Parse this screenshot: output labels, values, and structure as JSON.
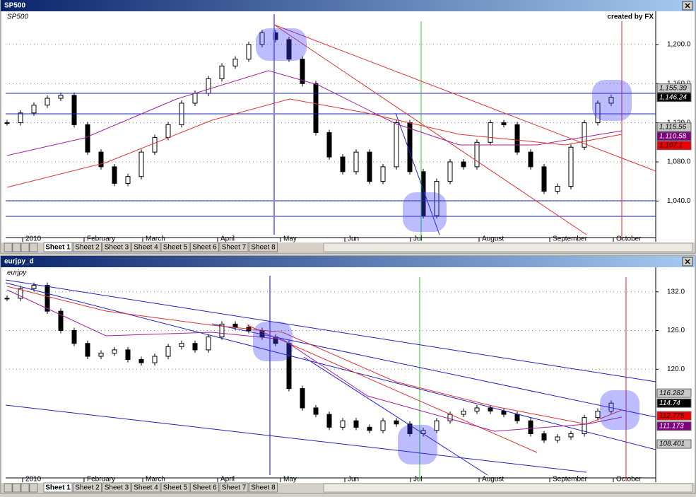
{
  "windows": [
    {
      "title": "SP500",
      "label": "SP500",
      "credit": "created by FX",
      "ylim": [
        1007,
        1231
      ],
      "yticks": [
        {
          "value": 1200,
          "label": "1,200.0"
        },
        {
          "value": 1160,
          "label": "1,160.0"
        },
        {
          "value": 1120,
          "label": "1,120.0"
        },
        {
          "value": 1080,
          "label": "1,080.0"
        },
        {
          "value": 1040,
          "label": "1,040.0"
        }
      ],
      "price_tags": [
        {
          "value": 1155.39,
          "label": "1,155.39",
          "color": "#c8c8c8"
        },
        {
          "value": 1146.24,
          "label": "1,146.24",
          "color": "#000000"
        },
        {
          "value": 1115.56,
          "label": "1,115.56",
          "color": "#c8c8c8"
        },
        {
          "value": 1110.58,
          "label": "1,110.58",
          "color": "#800080"
        },
        {
          "value": 1107.1,
          "label": "1,107.1",
          "color": "#ee0000"
        }
      ],
      "months": [
        "2010",
        "February",
        "March",
        "April",
        "May",
        "Jun",
        "Jul",
        "August",
        "September",
        "October"
      ],
      "closes": [
        1120,
        1130,
        1138,
        1145,
        1148,
        1118,
        1090,
        1075,
        1058,
        1065,
        1090,
        1105,
        1118,
        1140,
        1150,
        1165,
        1178,
        1185,
        1200,
        1212,
        1205,
        1185,
        1160,
        1110,
        1085,
        1070,
        1090,
        1060,
        1075,
        1120,
        1070,
        1025,
        1060,
        1080,
        1075,
        1100,
        1120,
        1118,
        1090,
        1075,
        1050,
        1055,
        1095,
        1120,
        1140,
        1146
      ]
    },
    {
      "title": "eurjpy_d",
      "label": "eurjpy",
      "ylim": [
        103.8,
        134.5
      ],
      "yticks": [
        {
          "value": 132,
          "label": "132.0"
        },
        {
          "value": 126,
          "label": "126.0"
        },
        {
          "value": 120,
          "label": "120.0"
        }
      ],
      "price_tags": [
        {
          "value": 116.282,
          "label": "116.282",
          "color": "#c8c8c8"
        },
        {
          "value": 114.74,
          "label": "114.74",
          "color": "#000000"
        },
        {
          "value": 112.775,
          "label": "112.775",
          "color": "#ee0000"
        },
        {
          "value": 111.173,
          "label": "111.173",
          "color": "#800080"
        },
        {
          "value": 108.401,
          "label": "108.401",
          "color": "#c8c8c8"
        }
      ],
      "months": [
        "2010",
        "February",
        "March",
        "April",
        "May",
        "Jun",
        "Jul",
        "August",
        "September",
        "October"
      ],
      "closes": [
        131,
        132.5,
        133,
        129,
        126,
        124,
        122,
        122.5,
        123,
        121.5,
        121,
        122,
        123.5,
        124,
        123,
        125,
        127,
        126.5,
        126,
        125,
        124,
        117,
        114,
        113,
        111,
        112,
        111,
        110.5,
        112,
        111.5,
        110,
        110.5,
        112,
        113,
        113.5,
        114,
        113.5,
        113,
        112,
        110,
        109,
        109.5,
        110,
        112.5,
        113.5,
        114.74
      ]
    }
  ],
  "sheets": [
    "Sheet 1",
    "Sheet 2",
    "Sheet 3",
    "Sheet 4",
    "Sheet 5",
    "Sheet 6",
    "Sheet 7",
    "Sheet 8"
  ]
}
